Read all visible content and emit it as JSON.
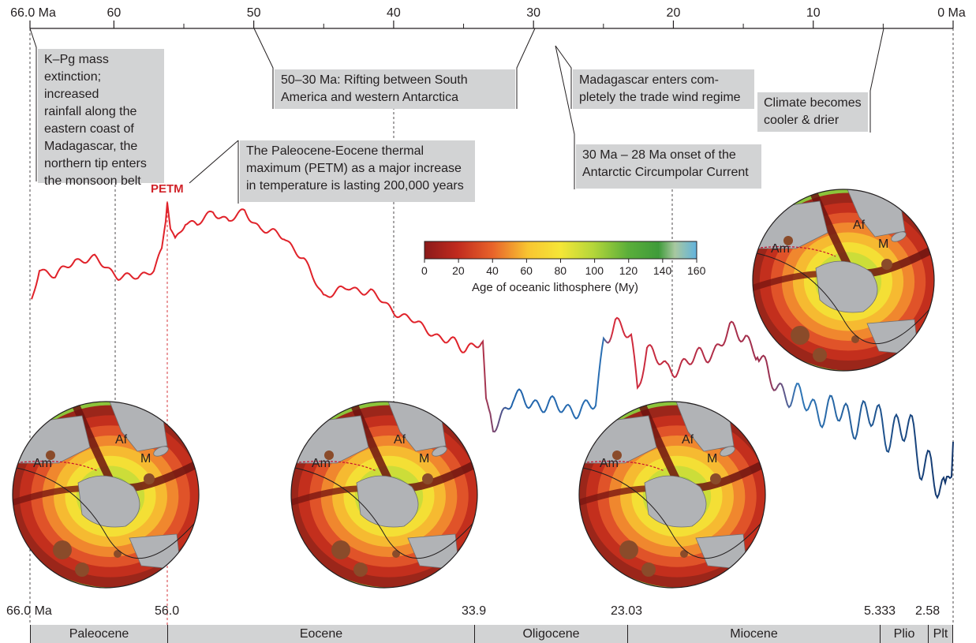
{
  "axis": {
    "ticks": [
      {
        "value": 66,
        "label": "66.0 Ma"
      },
      {
        "value": 60,
        "label": "60"
      },
      {
        "value": 50,
        "label": "50"
      },
      {
        "value": 40,
        "label": "40"
      },
      {
        "value": 30,
        "label": "30"
      },
      {
        "value": 20,
        "label": "20"
      },
      {
        "value": 10,
        "label": "10"
      },
      {
        "value": 0,
        "label": "0 Ma"
      }
    ],
    "minor_ticks": [
      55,
      45,
      35,
      25,
      15,
      5
    ]
  },
  "notes": {
    "kpg": "K–Pg mass\nextinction; increased\nrainfall along the\neastern coast of\nMadagascar, the\nnorthern tip enters\nthe monsoon belt",
    "petm": "The Paleocene-Eocene thermal\nmaximum (PETM) as a major increase\nin temperature is lasting 200,000 years",
    "rifting": "50–30 Ma: Rifting between South\nAmerica and western Antarctica",
    "trade_wind": "Madagascar enters com-\npletely the trade wind regime",
    "acc": "30 Ma – 28 Ma onset of the\nAntarctic Circumpolar Current",
    "climate": "Climate becomes\ncooler & drier"
  },
  "petm_label": "PETM",
  "colorbar": {
    "title": "Age of oceanic lithosphere (My)",
    "ticks": [
      "0",
      "20",
      "40",
      "60",
      "80",
      "100",
      "120",
      "140",
      "160"
    ],
    "colors": [
      "#8b1a1a",
      "#b5271d",
      "#d33b20",
      "#e8632a",
      "#f29a2f",
      "#f8c531",
      "#f5e637",
      "#d8e23a",
      "#b4d63a",
      "#8cc43b",
      "#5aae3a",
      "#3f9b3a",
      "#a8c8a0",
      "#62b3de"
    ]
  },
  "boundaries": [
    {
      "label": "66.0 Ma"
    },
    {
      "label": "56.0"
    },
    {
      "label": "33.9"
    },
    {
      "label": "23.03"
    },
    {
      "label": "5.333"
    },
    {
      "label": "2.58"
    }
  ],
  "epochs": [
    {
      "label": "Paleocene"
    },
    {
      "label": "Eocene"
    },
    {
      "label": "Oligocene"
    },
    {
      "label": "Miocene"
    },
    {
      "label": "Plio"
    },
    {
      "label": "Plt"
    }
  ],
  "maps": [
    {
      "labels": {
        "af": "Af",
        "am": "Am",
        "m": "M"
      }
    },
    {
      "labels": {
        "af": "Af",
        "am": "Am",
        "m": "M"
      }
    },
    {
      "labels": {
        "af": "Af",
        "am": "Am",
        "m": "M"
      }
    },
    {
      "labels": {
        "af": "Af",
        "am": "Am",
        "m": "M"
      }
    }
  ],
  "colors": {
    "curve_warm": "#e0222a",
    "curve_cool": "#1f5fa8",
    "petm": "#d1232a",
    "ocean_old": "#b5271d",
    "ocean_young": "#8cc43b",
    "land": "#b1b3b6",
    "label_box": "#d2d3d4"
  }
}
